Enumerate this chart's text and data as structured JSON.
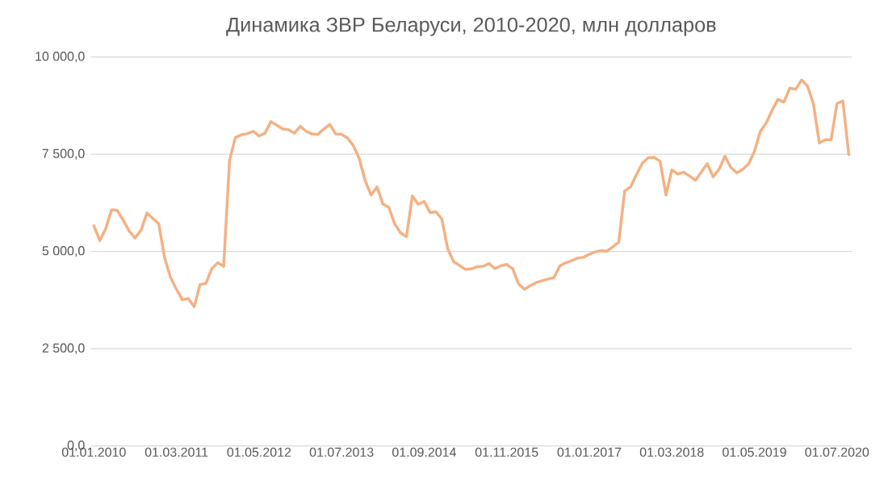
{
  "chart_data": {
    "type": "line",
    "title": "Динамика ЗВР Беларуси, 2010-2020, млн долларов",
    "x": [
      "2010-01",
      "2010-02",
      "2010-03",
      "2010-04",
      "2010-05",
      "2010-06",
      "2010-07",
      "2010-08",
      "2010-09",
      "2010-10",
      "2010-11",
      "2010-12",
      "2011-01",
      "2011-02",
      "2011-03",
      "2011-04",
      "2011-05",
      "2011-06",
      "2011-07",
      "2011-08",
      "2011-09",
      "2011-10",
      "2011-11",
      "2011-12",
      "2012-01",
      "2012-02",
      "2012-03",
      "2012-04",
      "2012-05",
      "2012-06",
      "2012-07",
      "2012-08",
      "2012-09",
      "2012-10",
      "2012-11",
      "2012-12",
      "2013-01",
      "2013-02",
      "2013-03",
      "2013-04",
      "2013-05",
      "2013-06",
      "2013-07",
      "2013-08",
      "2013-09",
      "2013-10",
      "2013-11",
      "2013-12",
      "2014-01",
      "2014-02",
      "2014-03",
      "2014-04",
      "2014-05",
      "2014-06",
      "2014-07",
      "2014-08",
      "2014-09",
      "2014-10",
      "2014-11",
      "2014-12",
      "2015-01",
      "2015-02",
      "2015-03",
      "2015-04",
      "2015-05",
      "2015-06",
      "2015-07",
      "2015-08",
      "2015-09",
      "2015-10",
      "2015-11",
      "2015-12",
      "2016-01",
      "2016-02",
      "2016-03",
      "2016-04",
      "2016-05",
      "2016-06",
      "2016-07",
      "2016-08",
      "2016-09",
      "2016-10",
      "2016-11",
      "2016-12",
      "2017-01",
      "2017-02",
      "2017-03",
      "2017-04",
      "2017-05",
      "2017-06",
      "2017-07",
      "2017-08",
      "2017-09",
      "2017-10",
      "2017-11",
      "2017-12",
      "2018-01",
      "2018-02",
      "2018-03",
      "2018-04",
      "2018-05",
      "2018-06",
      "2018-07",
      "2018-08",
      "2018-09",
      "2018-10",
      "2018-11",
      "2018-12",
      "2019-01",
      "2019-02",
      "2019-03",
      "2019-04",
      "2019-05",
      "2019-06",
      "2019-07",
      "2019-08",
      "2019-09",
      "2019-10",
      "2019-11",
      "2019-12",
      "2020-01",
      "2020-02",
      "2020-03",
      "2020-04",
      "2020-05",
      "2020-06",
      "2020-07",
      "2020-08",
      "2020-09"
    ],
    "series": [
      {
        "color": "#f4b183",
        "values": [
          5660,
          5280,
          5590,
          6070,
          6050,
          5800,
          5520,
          5350,
          5550,
          5990,
          5850,
          5710,
          4830,
          4330,
          4030,
          3760,
          3790,
          3580,
          4150,
          4180,
          4560,
          4710,
          4620,
          7350,
          7930,
          8000,
          8030,
          8090,
          7970,
          8040,
          8340,
          8250,
          8150,
          8130,
          8040,
          8220,
          8090,
          8020,
          8010,
          8150,
          8270,
          8020,
          8010,
          7920,
          7720,
          7390,
          6820,
          6450,
          6660,
          6220,
          6140,
          5710,
          5480,
          5380,
          6430,
          6210,
          6290,
          6000,
          6020,
          5830,
          5070,
          4740,
          4640,
          4540,
          4550,
          4610,
          4620,
          4690,
          4560,
          4630,
          4670,
          4560,
          4170,
          4030,
          4120,
          4200,
          4250,
          4290,
          4330,
          4630,
          4710,
          4760,
          4830,
          4850,
          4930,
          4990,
          5020,
          5010,
          5120,
          5240,
          6560,
          6660,
          6980,
          7270,
          7410,
          7420,
          7320,
          6450,
          7100,
          6990,
          7040,
          6940,
          6830,
          7040,
          7260,
          6920,
          7110,
          7450,
          7160,
          7020,
          7110,
          7250,
          7570,
          8090,
          8300,
          8630,
          8910,
          8840,
          9200,
          9170,
          9410,
          9250,
          8800,
          7790,
          7870,
          7870,
          8800,
          8870,
          7490
        ]
      }
    ],
    "xlim": [
      "2009-12-16",
      "2020-09-16"
    ],
    "xticks": [
      {
        "value": "2010-01",
        "label": "01.01.2010"
      },
      {
        "value": "2011-03",
        "label": "01.03.2011"
      },
      {
        "value": "2012-05",
        "label": "01.05.2012"
      },
      {
        "value": "2013-07",
        "label": "01.07.2013"
      },
      {
        "value": "2014-09",
        "label": "01.09.2014"
      },
      {
        "value": "2015-11",
        "label": "01.11.2015"
      },
      {
        "value": "2017-01",
        "label": "01.01.2017"
      },
      {
        "value": "2018-03",
        "label": "01.03.2018"
      },
      {
        "value": "2019-05",
        "label": "01.05.2019"
      },
      {
        "value": "2020-07",
        "label": "01.07.2020"
      }
    ],
    "ylim": [
      0,
      10000
    ],
    "yticks": [
      {
        "value": 0,
        "label": "0,0"
      },
      {
        "value": 2500,
        "label": "2 500,0"
      },
      {
        "value": 5000,
        "label": "5 000,0"
      },
      {
        "value": 7500,
        "label": "7 500,0"
      },
      {
        "value": 10000,
        "label": "10 000,0"
      }
    ],
    "grid": "y"
  }
}
